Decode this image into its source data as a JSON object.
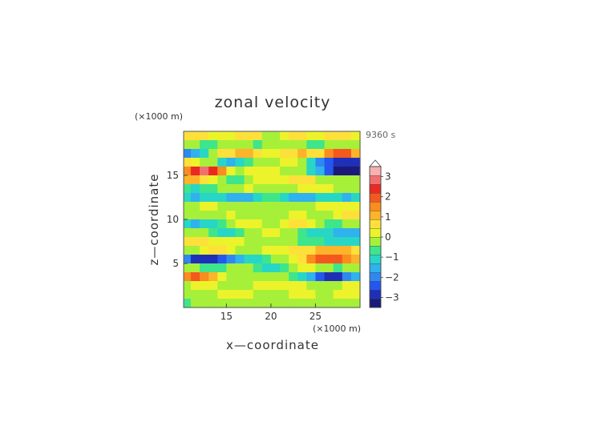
{
  "chart_data": {
    "type": "heatmap",
    "title": "zonal velocity",
    "time_label": "9360 s",
    "xlabel": "x—coordinate",
    "ylabel": "z—coordinate",
    "x_unit": "(×1000 m)",
    "y_unit": "(×1000 m)",
    "xlim": [
      10.2,
      30.0
    ],
    "ylim": [
      0.0,
      20.0
    ],
    "x_ticks": [
      15,
      20,
      25
    ],
    "y_ticks": [
      5,
      10,
      15
    ],
    "colorbar": {
      "range": [
        -3.5,
        3.5
      ],
      "step": 0.5,
      "ticks": [
        3,
        2,
        1,
        0,
        -1,
        -2,
        -3
      ],
      "tick_labels": [
        "3",
        "2",
        "1",
        "0",
        "−1",
        "−2",
        "−3"
      ],
      "extend": "max",
      "colors": [
        "#1a1a7a",
        "#1f2fb8",
        "#2457ee",
        "#2f88f0",
        "#2fb2ee",
        "#28d6c6",
        "#3fe58a",
        "#a6f03a",
        "#ecf32a",
        "#fde03a",
        "#fdb32a",
        "#fb8c1e",
        "#f5581e",
        "#ea2a22",
        "#f07070",
        "#f8b0b0"
      ]
    },
    "field": {
      "x": [
        10.5,
        11.5,
        12.5,
        13.5,
        14.5,
        15.5,
        16.5,
        17.5,
        18.5,
        19.5,
        20.5,
        21.5,
        22.5,
        23.5,
        24.5,
        25.5,
        26.5,
        27.5,
        28.5,
        29.5
      ],
      "z": [
        19.5,
        18.5,
        17.5,
        16.5,
        15.5,
        14.5,
        13.5,
        12.5,
        11.5,
        10.5,
        9.5,
        8.5,
        7.5,
        6.5,
        5.5,
        4.5,
        3.5,
        2.5,
        1.5,
        0.5
      ],
      "values": [
        [
          1.0,
          1.2,
          1.0,
          0.8,
          0.6,
          0.8,
          1.2,
          1.4,
          1.0,
          0.4,
          0.4,
          0.8,
          1.0,
          1.0,
          0.8,
          0.8,
          1.2,
          1.2,
          1.0,
          0.8
        ],
        [
          0.4,
          0.0,
          -0.4,
          -0.4,
          0.0,
          0.4,
          0.4,
          0.0,
          -0.2,
          0.2,
          0.2,
          0.4,
          0.4,
          0.0,
          -0.4,
          -0.4,
          0.0,
          0.2,
          0.2,
          0.0
        ],
        [
          -1.6,
          -1.4,
          -0.6,
          0.4,
          1.0,
          1.4,
          1.6,
          1.8,
          1.2,
          0.6,
          0.6,
          1.2,
          1.4,
          1.6,
          1.4,
          1.4,
          2.2,
          2.8,
          2.6,
          1.8
        ],
        [
          1.0,
          0.8,
          0.4,
          0.0,
          -0.6,
          -1.2,
          -1.0,
          -0.4,
          0.2,
          0.4,
          0.4,
          0.6,
          0.6,
          0.2,
          -0.6,
          -1.6,
          -2.4,
          -2.8,
          -3.0,
          -2.8
        ],
        [
          2.2,
          3.0,
          3.6,
          3.4,
          2.0,
          0.8,
          0.4,
          0.6,
          0.8,
          0.6,
          0.6,
          0.4,
          0.4,
          0.2,
          -0.6,
          -1.4,
          -2.4,
          -3.2,
          -3.4,
          -3.2
        ],
        [
          1.6,
          1.8,
          1.4,
          0.8,
          0.0,
          -0.4,
          -0.2,
          0.4,
          0.8,
          0.6,
          0.6,
          0.8,
          1.0,
          1.2,
          1.0,
          0.4,
          0.0,
          0.2,
          0.4,
          0.4
        ],
        [
          -0.4,
          -0.6,
          -0.4,
          -0.2,
          0.0,
          0.2,
          0.4,
          0.6,
          0.4,
          0.2,
          0.2,
          0.2,
          0.4,
          0.6,
          0.8,
          0.8,
          0.6,
          0.4,
          0.2,
          0.2
        ],
        [
          -1.0,
          -1.2,
          -1.0,
          -0.6,
          -0.6,
          -1.2,
          -1.4,
          -1.2,
          -0.8,
          -0.4,
          -0.4,
          -0.8,
          -1.2,
          -1.4,
          -1.2,
          -0.8,
          -0.8,
          -1.0,
          -1.2,
          -1.0
        ],
        [
          0.2,
          0.4,
          0.6,
          0.6,
          0.4,
          0.2,
          0.0,
          0.0,
          0.2,
          0.4,
          0.4,
          0.2,
          0.0,
          0.0,
          0.2,
          0.6,
          0.8,
          0.8,
          0.8,
          0.6
        ],
        [
          0.0,
          0.0,
          0.0,
          0.2,
          0.4,
          0.6,
          0.4,
          0.2,
          0.0,
          0.0,
          0.0,
          0.2,
          0.6,
          0.6,
          0.4,
          0.2,
          0.2,
          0.6,
          1.2,
          1.4
        ],
        [
          -0.8,
          -1.2,
          -1.0,
          -0.6,
          -0.2,
          0.2,
          0.6,
          0.8,
          0.6,
          0.4,
          0.4,
          0.8,
          1.0,
          1.0,
          0.6,
          0.2,
          -0.2,
          -0.2,
          0.0,
          0.2
        ],
        [
          0.4,
          0.2,
          0.0,
          -0.4,
          -0.8,
          -0.8,
          -0.4,
          0.0,
          0.4,
          0.6,
          0.6,
          0.4,
          0.0,
          -0.2,
          -0.6,
          -0.8,
          -1.0,
          -1.2,
          -1.4,
          -1.4
        ],
        [
          1.2,
          1.4,
          1.0,
          0.6,
          0.6,
          0.8,
          0.6,
          0.4,
          0.2,
          0.4,
          0.4,
          0.2,
          0.0,
          -0.2,
          -0.4,
          -0.4,
          -0.6,
          -0.8,
          -1.0,
          -1.0
        ],
        [
          0.2,
          0.4,
          0.8,
          1.0,
          1.0,
          0.8,
          0.4,
          0.2,
          0.4,
          0.8,
          0.8,
          0.8,
          1.0,
          1.2,
          1.4,
          1.6,
          1.8,
          1.8,
          1.6,
          1.2
        ],
        [
          -1.8,
          -2.6,
          -3.0,
          -2.8,
          -2.2,
          -1.6,
          -1.2,
          -1.0,
          -0.6,
          -0.2,
          0.0,
          0.2,
          0.6,
          1.2,
          2.0,
          2.6,
          2.8,
          2.6,
          2.2,
          1.6
        ],
        [
          0.4,
          0.2,
          -0.2,
          -0.4,
          -0.2,
          0.0,
          0.2,
          0.0,
          -0.4,
          -0.6,
          -0.6,
          -0.2,
          0.4,
          0.6,
          0.6,
          0.4,
          0.0,
          -0.2,
          0.0,
          0.2
        ],
        [
          2.2,
          2.8,
          2.4,
          1.6,
          0.8,
          0.2,
          0.0,
          0.0,
          0.0,
          0.4,
          0.4,
          0.0,
          -0.2,
          -0.8,
          -1.4,
          -2.2,
          -2.8,
          -2.6,
          -2.0,
          -1.2
        ],
        [
          0.4,
          0.6,
          0.8,
          0.6,
          0.4,
          0.4,
          0.4,
          0.4,
          0.6,
          0.8,
          0.8,
          0.6,
          0.6,
          0.6,
          0.4,
          0.2,
          0.2,
          0.4,
          0.6,
          0.6
        ],
        [
          0.0,
          0.0,
          0.2,
          0.4,
          0.6,
          0.8,
          0.8,
          0.6,
          0.4,
          0.2,
          0.2,
          0.4,
          0.6,
          0.8,
          0.6,
          0.4,
          0.4,
          0.6,
          0.8,
          0.6
        ],
        [
          -0.2,
          0.0,
          0.2,
          0.4,
          0.4,
          0.4,
          0.2,
          0.0,
          0.0,
          0.2,
          0.2,
          0.2,
          0.2,
          0.4,
          0.4,
          0.4,
          0.2,
          0.2,
          0.4,
          0.2
        ]
      ]
    }
  }
}
